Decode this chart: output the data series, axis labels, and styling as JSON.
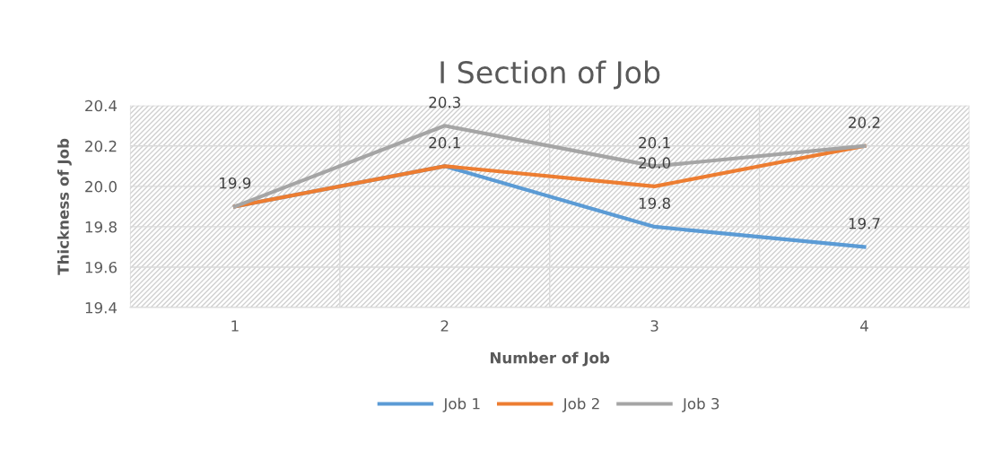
{
  "chart_data": {
    "type": "line",
    "title": "I Section of Job",
    "xlabel": "Number of Job",
    "ylabel": "Thickness of Job",
    "categories": [
      "1",
      "2",
      "3",
      "4"
    ],
    "series": [
      {
        "name": "Job 1",
        "color": "#5b9bd5",
        "values": [
          19.9,
          20.1,
          19.8,
          19.7
        ],
        "value_labels": [
          "19.9",
          null,
          "19.8",
          "19.7"
        ]
      },
      {
        "name": "Job 2",
        "color": "#ed7d31",
        "values": [
          19.9,
          20.1,
          20.0,
          20.2
        ],
        "value_labels": [
          null,
          "20.1",
          "20.0",
          null
        ]
      },
      {
        "name": "Job 3",
        "color": "#a5a5a5",
        "values": [
          19.9,
          20.3,
          20.1,
          20.2
        ],
        "value_labels": [
          null,
          "20.3",
          "20.1",
          "20.2"
        ]
      }
    ],
    "ylim": [
      19.4,
      20.4
    ],
    "yticks": [
      {
        "value": 19.4,
        "label": "19.4"
      },
      {
        "value": 19.6,
        "label": "19.6"
      },
      {
        "value": 19.8,
        "label": "19.8"
      },
      {
        "value": 20.0,
        "label": "20.0"
      },
      {
        "value": 20.2,
        "label": "20.2"
      },
      {
        "value": 20.4,
        "label": "20.4"
      }
    ],
    "grid": true,
    "legend": "bottom",
    "marker": "none",
    "line_style": "solid"
  }
}
